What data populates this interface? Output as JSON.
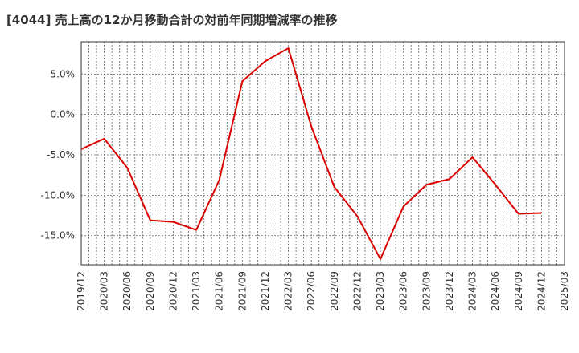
{
  "chart_data": {
    "type": "line",
    "title": "[4044]  売上高の12か月移動合計の対前年同期増減率の推移",
    "xlabel": "",
    "ylabel": "",
    "x_tick_labels": [
      "2019/12",
      "2020/03",
      "2020/06",
      "2020/09",
      "2020/12",
      "2021/03",
      "2021/06",
      "2021/09",
      "2021/12",
      "2022/03",
      "2022/06",
      "2022/09",
      "2022/12",
      "2023/03",
      "2023/06",
      "2023/09",
      "2023/12",
      "2024/03",
      "2024/06",
      "2024/09",
      "2024/12",
      "2025/03"
    ],
    "y_ticks": [
      5,
      0,
      -5,
      -10,
      -15
    ],
    "y_tick_labels": [
      "5.0%",
      "0.0%",
      "-5.0%",
      "-10.0%",
      "-15.0%"
    ],
    "ylim": [
      -18.6,
      9.0
    ],
    "grid": true,
    "series": [
      {
        "name": "対前年同期増減率",
        "color": "#dd0000",
        "x": [
          "2019/12",
          "2020/03",
          "2020/06",
          "2020/09",
          "2020/12",
          "2021/03",
          "2021/06",
          "2021/09",
          "2021/12",
          "2022/03",
          "2022/06",
          "2022/09",
          "2022/12",
          "2023/03",
          "2023/06",
          "2023/09",
          "2023/12",
          "2024/03",
          "2024/06",
          "2024/09",
          "2024/12"
        ],
        "values": [
          -4.3,
          -3.0,
          -6.6,
          -13.1,
          -13.3,
          -14.3,
          -8.1,
          4.1,
          6.6,
          8.2,
          -1.5,
          -9.0,
          -12.6,
          -17.9,
          -11.4,
          -8.7,
          -8.0,
          -5.3,
          -8.7,
          -12.3,
          -12.2
        ]
      }
    ]
  }
}
